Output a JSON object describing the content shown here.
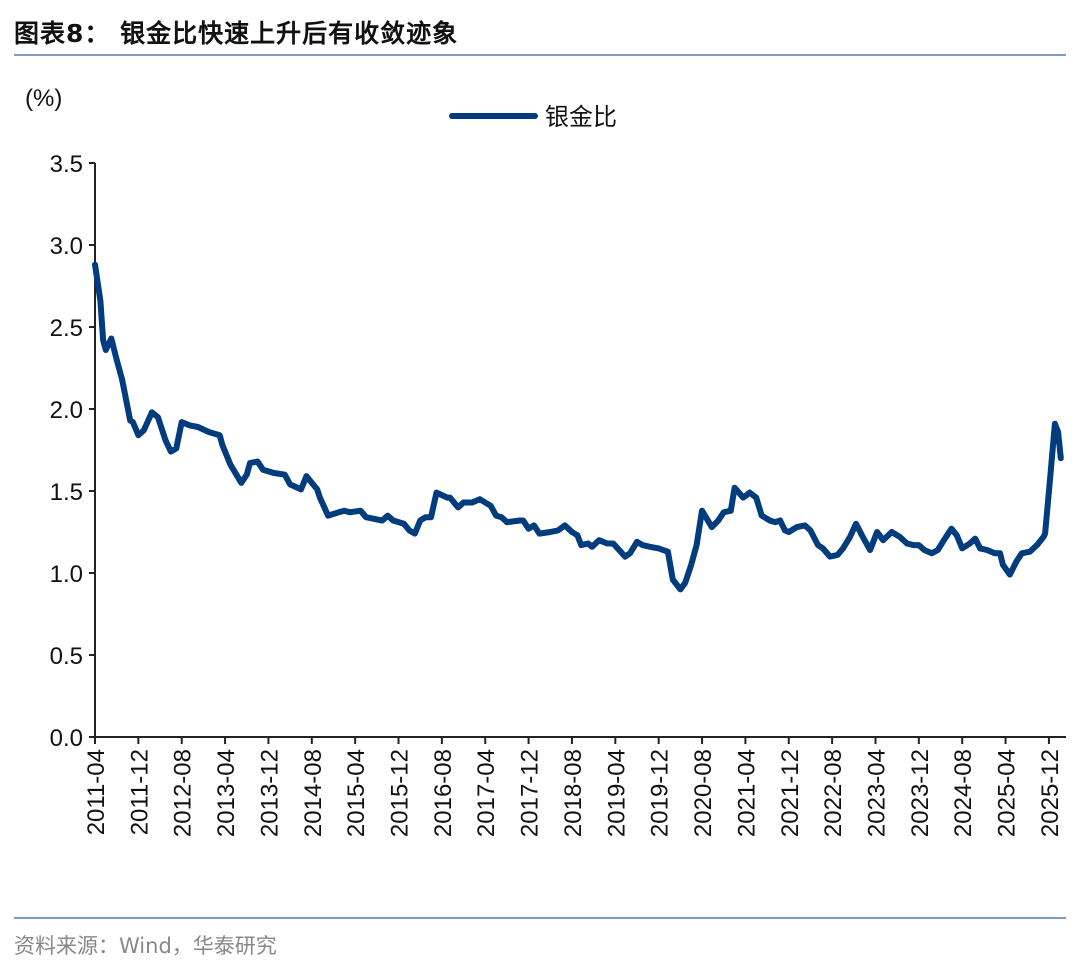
{
  "title": "图表8：  银金比快速上升后有收敛迹象",
  "source": "资料来源：Wind，华泰研究",
  "colors": {
    "line": "#003C7E",
    "rule": "#7f9cc6",
    "axis": "#222222"
  },
  "chart_data": {
    "type": "line",
    "title": "银金比快速上升后有收敛迹象",
    "ylabel": "(%)",
    "xlabel": "",
    "ylim": [
      0,
      3.5
    ],
    "yticks": [
      "0.0",
      "0.5",
      "1.0",
      "1.5",
      "2.0",
      "2.5",
      "3.0",
      "3.5"
    ],
    "ytick_values": [
      0,
      0.5,
      1.0,
      1.5,
      2.0,
      2.5,
      3.0,
      3.5
    ],
    "x_unit": "months since 2011-04",
    "xticks": [
      "2011-04",
      "2011-12",
      "2012-08",
      "2013-04",
      "2013-12",
      "2014-08",
      "2015-04",
      "2015-12",
      "2016-08",
      "2017-04",
      "2017-12",
      "2018-08",
      "2019-04",
      "2019-12",
      "2020-08",
      "2021-04",
      "2021-12",
      "2022-08",
      "2023-04",
      "2023-12",
      "2024-08",
      "2025-04",
      "2025-12"
    ],
    "xtick_step_months": 8,
    "grid": false,
    "legend_position": "top-center",
    "series": [
      {
        "name": "银金比",
        "points": [
          [
            0,
            2.88
          ],
          [
            1,
            2.66
          ],
          [
            1.5,
            2.42
          ],
          [
            2,
            2.36
          ],
          [
            3,
            2.43
          ],
          [
            4,
            2.3
          ],
          [
            5,
            2.18
          ],
          [
            6.5,
            1.93
          ],
          [
            7,
            1.92
          ],
          [
            8,
            1.84
          ],
          [
            9,
            1.87
          ],
          [
            10.5,
            1.98
          ],
          [
            11.6,
            1.95
          ],
          [
            13,
            1.81
          ],
          [
            14,
            1.74
          ],
          [
            15,
            1.76
          ],
          [
            16,
            1.92
          ],
          [
            17.5,
            1.9
          ],
          [
            19,
            1.89
          ],
          [
            21,
            1.86
          ],
          [
            23,
            1.84
          ],
          [
            23.5,
            1.78
          ],
          [
            25,
            1.66
          ],
          [
            27,
            1.55
          ],
          [
            28,
            1.6
          ],
          [
            28.6,
            1.67
          ],
          [
            30,
            1.68
          ],
          [
            31,
            1.63
          ],
          [
            33,
            1.61
          ],
          [
            35,
            1.6
          ],
          [
            36,
            1.54
          ],
          [
            38,
            1.51
          ],
          [
            39,
            1.59
          ],
          [
            41,
            1.51
          ],
          [
            41.5,
            1.46
          ],
          [
            43,
            1.35
          ],
          [
            45,
            1.37
          ],
          [
            46,
            1.38
          ],
          [
            47,
            1.37
          ],
          [
            49,
            1.38
          ],
          [
            50,
            1.34
          ],
          [
            53,
            1.32
          ],
          [
            54,
            1.35
          ],
          [
            55,
            1.32
          ],
          [
            57,
            1.3
          ],
          [
            58,
            1.26
          ],
          [
            59,
            1.24
          ],
          [
            60,
            1.32
          ],
          [
            61,
            1.34
          ],
          [
            62,
            1.34
          ],
          [
            63,
            1.49
          ],
          [
            65,
            1.46
          ],
          [
            65.5,
            1.46
          ],
          [
            67,
            1.4
          ],
          [
            68,
            1.43
          ],
          [
            69.6,
            1.43
          ],
          [
            71,
            1.45
          ],
          [
            72,
            1.43
          ],
          [
            73,
            1.41
          ],
          [
            74,
            1.35
          ],
          [
            75,
            1.34
          ],
          [
            76,
            1.31
          ],
          [
            78.4,
            1.32
          ],
          [
            79,
            1.32
          ],
          [
            80,
            1.27
          ],
          [
            81,
            1.29
          ],
          [
            82,
            1.24
          ],
          [
            84,
            1.25
          ],
          [
            85.4,
            1.26
          ],
          [
            86.7,
            1.29
          ],
          [
            88,
            1.25
          ],
          [
            89,
            1.23
          ],
          [
            89.7,
            1.17
          ],
          [
            91,
            1.18
          ],
          [
            91.7,
            1.16
          ],
          [
            93,
            1.2
          ],
          [
            94.5,
            1.18
          ],
          [
            95.6,
            1.18
          ],
          [
            97,
            1.13
          ],
          [
            97.8,
            1.1
          ],
          [
            98.7,
            1.12
          ],
          [
            100,
            1.19
          ],
          [
            101,
            1.17
          ],
          [
            102.4,
            1.16
          ],
          [
            104,
            1.15
          ],
          [
            105.7,
            1.13
          ],
          [
            106.6,
            0.96
          ],
          [
            108,
            0.9
          ],
          [
            108.9,
            0.94
          ],
          [
            110,
            1.05
          ],
          [
            111,
            1.17
          ],
          [
            112,
            1.38
          ],
          [
            113.8,
            1.28
          ],
          [
            115,
            1.32
          ],
          [
            116,
            1.37
          ],
          [
            117.3,
            1.38
          ],
          [
            118,
            1.52
          ],
          [
            119.6,
            1.46
          ],
          [
            120.8,
            1.49
          ],
          [
            122,
            1.46
          ],
          [
            123,
            1.35
          ],
          [
            124.5,
            1.32
          ],
          [
            125.5,
            1.31
          ],
          [
            126.4,
            1.32
          ],
          [
            127.3,
            1.26
          ],
          [
            128,
            1.25
          ],
          [
            129.5,
            1.28
          ],
          [
            131,
            1.29
          ],
          [
            132,
            1.26
          ],
          [
            133.4,
            1.17
          ],
          [
            134.3,
            1.15
          ],
          [
            135.6,
            1.1
          ],
          [
            137,
            1.11
          ],
          [
            138,
            1.15
          ],
          [
            139.3,
            1.22
          ],
          [
            140.4,
            1.3
          ],
          [
            141.5,
            1.23
          ],
          [
            143,
            1.14
          ],
          [
            144.3,
            1.25
          ],
          [
            145.4,
            1.2
          ],
          [
            147,
            1.25
          ],
          [
            148.5,
            1.22
          ],
          [
            149.8,
            1.18
          ],
          [
            151,
            1.17
          ],
          [
            152,
            1.17
          ],
          [
            153,
            1.14
          ],
          [
            154.4,
            1.12
          ],
          [
            155.5,
            1.14
          ],
          [
            156.8,
            1.21
          ],
          [
            158,
            1.27
          ],
          [
            159,
            1.23
          ],
          [
            160,
            1.15
          ],
          [
            161.4,
            1.18
          ],
          [
            162.4,
            1.21
          ],
          [
            163.3,
            1.15
          ],
          [
            164.6,
            1.14
          ],
          [
            166,
            1.12
          ],
          [
            167,
            1.12
          ],
          [
            167.5,
            1.05
          ],
          [
            168.8,
            0.99
          ],
          [
            170,
            1.07
          ],
          [
            171,
            1.12
          ],
          [
            172.5,
            1.13
          ],
          [
            173.8,
            1.17
          ],
          [
            175,
            1.22
          ],
          [
            175.3,
            1.24
          ],
          [
            176.2,
            1.57
          ],
          [
            177.1,
            1.91
          ],
          [
            177.7,
            1.86
          ],
          [
            178.2,
            1.7
          ]
        ]
      }
    ]
  }
}
